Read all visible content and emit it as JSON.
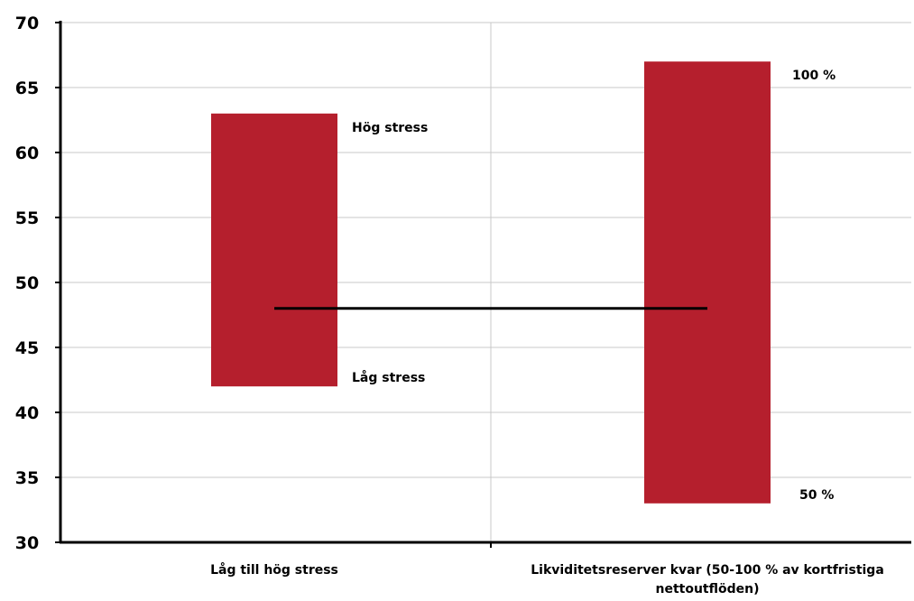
{
  "chart_data": {
    "type": "bar",
    "subtype": "floating-range",
    "ylim": [
      30,
      70
    ],
    "ytick_values": [
      30,
      35,
      40,
      45,
      50,
      55,
      60,
      65,
      70
    ],
    "ytick_labels": [
      "30",
      "35",
      "40",
      "45",
      "50",
      "55",
      "60",
      "65",
      "70"
    ],
    "grid": true,
    "bar_color": "#B51F2D",
    "line_color": "#000000",
    "categories": [
      {
        "label": "Låg till hög stress",
        "label_lines": [
          "Låg till hög stress"
        ]
      },
      {
        "label": "Likviditetsreserver kvar (50-100 % av kortfristiga nettoutflöden)",
        "label_lines": [
          "Likviditetsreserver kvar (50-100 % av kortfristiga",
          "nettoutflöden)"
        ]
      }
    ],
    "ranges": [
      {
        "low": 42,
        "high": 63,
        "high_label": "Hög stress",
        "low_label": "Låg stress"
      },
      {
        "low": 33,
        "high": 67,
        "high_label": "100 %",
        "low_label": "50 %"
      }
    ],
    "reference_line": {
      "value": 48
    }
  }
}
